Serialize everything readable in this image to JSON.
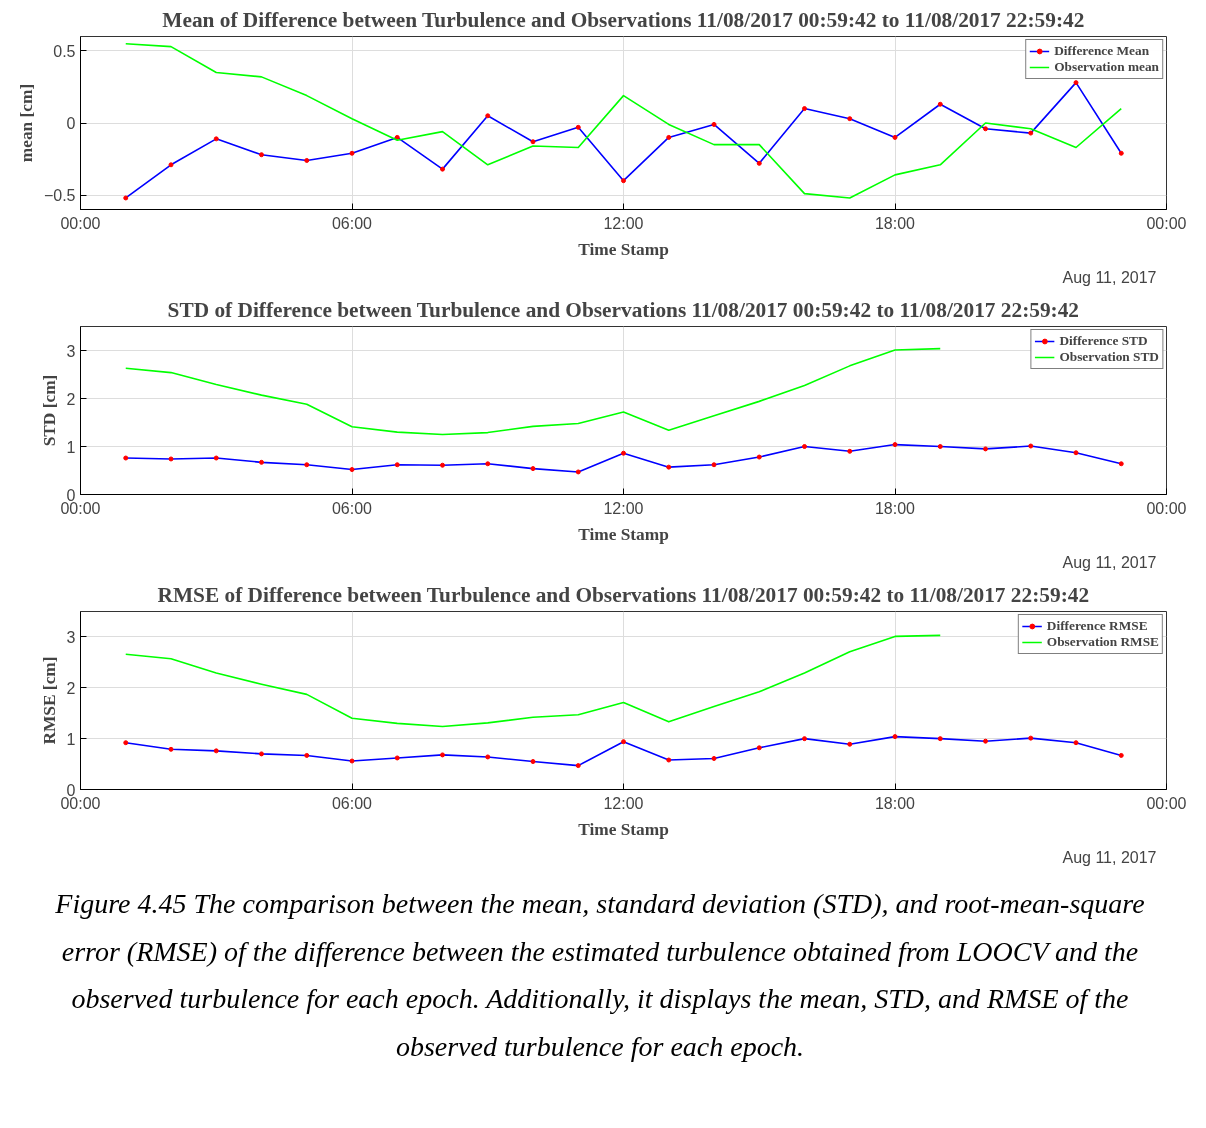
{
  "chart_data": [
    {
      "type": "line",
      "title": "Mean of Difference between Turbulence and Observations 11/08/2017 00:59:42 to 11/08/2017 22:59:42",
      "xlabel": "Time Stamp",
      "ylabel": "mean [cm]",
      "x": [
        1,
        2,
        3,
        4,
        5,
        6,
        7,
        8,
        9,
        10,
        11,
        12,
        13,
        14,
        15,
        16,
        17,
        18,
        19,
        20,
        21,
        22,
        23
      ],
      "xlim": [
        0,
        24
      ],
      "xticks": [
        {
          "value": 0,
          "label": "00:00"
        },
        {
          "value": 6,
          "label": "06:00"
        },
        {
          "value": 12,
          "label": "12:00"
        },
        {
          "value": 18,
          "label": "18:00"
        },
        {
          "value": 24,
          "label": "00:00"
        }
      ],
      "ylim": [
        -0.6,
        0.6
      ],
      "yticks": [
        -0.5,
        0,
        0.5
      ],
      "grid": true,
      "legend": "top right",
      "series": [
        {
          "name": "Difference Mean",
          "color": "#0000ff",
          "marker": "circle",
          "values": [
            -0.52,
            -0.29,
            -0.11,
            -0.22,
            -0.26,
            -0.21,
            -0.1,
            -0.32,
            0.05,
            -0.13,
            -0.03,
            -0.4,
            -0.1,
            -0.01,
            -0.28,
            0.1,
            0.03,
            -0.1,
            0.13,
            -0.04,
            -0.07,
            0.28,
            -0.21
          ]
        },
        {
          "name": "Observation mean",
          "color": "#00ff00",
          "marker": "none",
          "values": [
            0.55,
            0.53,
            0.35,
            0.32,
            0.19,
            0.03,
            -0.12,
            -0.06,
            -0.29,
            -0.16,
            -0.17,
            0.19,
            -0.01,
            -0.15,
            -0.15,
            -0.49,
            -0.52,
            -0.36,
            -0.29,
            0.0,
            -0.04,
            -0.17,
            0.1
          ]
        }
      ],
      "annotations": [
        "Aug 11, 2017"
      ]
    },
    {
      "type": "line",
      "title": "STD of Difference between Turbulence and Observations 11/08/2017 00:59:42 to 11/08/2017 22:59:42",
      "xlabel": "Time Stamp",
      "ylabel": "STD [cm]",
      "x": [
        1,
        2,
        3,
        4,
        5,
        6,
        7,
        8,
        9,
        10,
        11,
        12,
        13,
        14,
        15,
        16,
        17,
        18,
        19,
        20,
        21,
        22,
        23
      ],
      "xlim": [
        0,
        24
      ],
      "xticks": [
        {
          "value": 0,
          "label": "00:00"
        },
        {
          "value": 6,
          "label": "06:00"
        },
        {
          "value": 12,
          "label": "12:00"
        },
        {
          "value": 18,
          "label": "18:00"
        },
        {
          "value": 24,
          "label": "00:00"
        }
      ],
      "ylim": [
        0,
        3.5
      ],
      "yticks": [
        0,
        1,
        2,
        3
      ],
      "grid": true,
      "legend": "top right",
      "series": [
        {
          "name": "Difference STD",
          "color": "#0000ff",
          "marker": "circle",
          "values": [
            0.76,
            0.74,
            0.76,
            0.67,
            0.62,
            0.52,
            0.62,
            0.61,
            0.64,
            0.54,
            0.47,
            0.86,
            0.57,
            0.62,
            0.78,
            1.0,
            0.9,
            1.04,
            1.0,
            0.95,
            1.01,
            0.87,
            0.64
          ]
        },
        {
          "name": "Observation STD",
          "color": "#00ff00",
          "marker": "none",
          "values": [
            2.63,
            2.54,
            2.29,
            2.07,
            1.88,
            1.41,
            1.3,
            1.25,
            1.29,
            1.42,
            1.48,
            1.72,
            1.34,
            1.64,
            1.94,
            2.27,
            2.68,
            3.01,
            3.04,
            null,
            null,
            null,
            null
          ]
        }
      ],
      "annotations": [
        "Aug 11, 2017"
      ]
    },
    {
      "type": "line",
      "title": "RMSE of Difference between Turbulence and Observations 11/08/2017 00:59:42 to 11/08/2017 22:59:42",
      "xlabel": "Time Stamp",
      "ylabel": "RMSE [cm]",
      "x": [
        1,
        2,
        3,
        4,
        5,
        6,
        7,
        8,
        9,
        10,
        11,
        12,
        13,
        14,
        15,
        16,
        17,
        18,
        19,
        20,
        21,
        22,
        23
      ],
      "xlim": [
        0,
        24
      ],
      "xticks": [
        {
          "value": 0,
          "label": "00:00"
        },
        {
          "value": 6,
          "label": "06:00"
        },
        {
          "value": 12,
          "label": "12:00"
        },
        {
          "value": 18,
          "label": "18:00"
        },
        {
          "value": 24,
          "label": "00:00"
        }
      ],
      "ylim": [
        0,
        3.5
      ],
      "yticks": [
        0,
        1,
        2,
        3
      ],
      "grid": true,
      "legend": "top right",
      "series": [
        {
          "name": "Difference RMSE",
          "color": "#0000ff",
          "marker": "circle",
          "values": [
            0.92,
            0.79,
            0.76,
            0.7,
            0.67,
            0.56,
            0.62,
            0.68,
            0.64,
            0.55,
            0.47,
            0.94,
            0.58,
            0.61,
            0.82,
            1.0,
            0.89,
            1.04,
            1.0,
            0.95,
            1.01,
            0.92,
            0.67
          ]
        },
        {
          "name": "Observation RMSE",
          "color": "#00ff00",
          "marker": "none",
          "values": [
            2.66,
            2.57,
            2.29,
            2.07,
            1.87,
            1.4,
            1.3,
            1.24,
            1.31,
            1.42,
            1.47,
            1.71,
            1.33,
            1.63,
            1.92,
            2.29,
            2.71,
            3.01,
            3.03,
            null,
            null,
            null,
            null
          ]
        }
      ],
      "annotations": [
        "Aug 11, 2017",
        "Figure 4.45 The comparison between the mean, standard deviation (STD), and root-mean-square error (RMSE) of the difference between the estimated turbulence obtained from LOOCV and the observed turbulence for each epoch. Additionally, it displays the mean, STD, and RMSE of the observed turbulence for each epoch."
      ]
    }
  ]
}
